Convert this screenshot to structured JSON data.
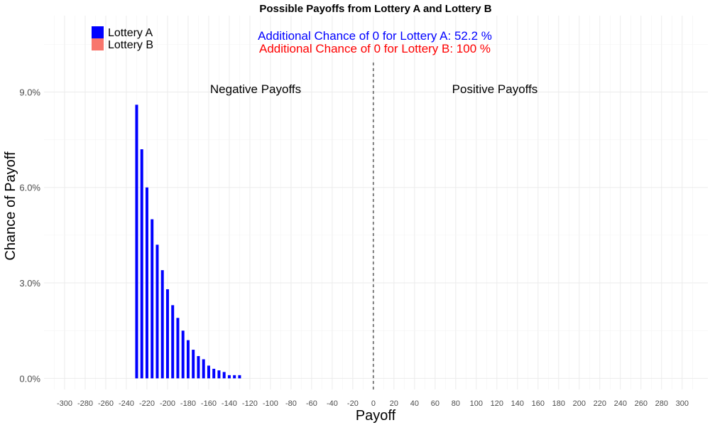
{
  "chart_data": {
    "type": "bar",
    "title": "Possible Payoffs from Lottery A and Lottery B",
    "xlabel": "Payoff",
    "ylabel": "Chance of Payoff",
    "xlim": [
      -320,
      325
    ],
    "ylim": [
      -0.35,
      11.4
    ],
    "x_ticks": [
      -300,
      -280,
      -260,
      -240,
      -220,
      -200,
      -180,
      -160,
      -140,
      -120,
      -100,
      -80,
      -60,
      -40,
      -20,
      0,
      20,
      40,
      60,
      80,
      100,
      120,
      140,
      160,
      180,
      200,
      220,
      240,
      260,
      280,
      300
    ],
    "y_ticks": [
      0,
      3,
      6,
      9
    ],
    "y_tick_labels": [
      "0.0%",
      "3.0%",
      "6.0%",
      "9.0%"
    ],
    "grid": true,
    "legend_position": "top-left",
    "legend": [
      {
        "name": "Lottery A",
        "color": "#0000ff"
      },
      {
        "name": "Lottery B",
        "color": "#f8766d"
      }
    ],
    "series": [
      {
        "name": "Lottery A",
        "color": "#0000ff",
        "x": [
          -230,
          -225,
          -220,
          -215,
          -210,
          -205,
          -200,
          -195,
          -190,
          -185,
          -180,
          -175,
          -170,
          -165,
          -160,
          -155,
          -150,
          -145,
          -140,
          -135,
          -130
        ],
        "values": [
          8.6,
          7.2,
          6.0,
          5.0,
          4.2,
          3.4,
          2.8,
          2.3,
          1.9,
          1.5,
          1.2,
          0.9,
          0.7,
          0.6,
          0.4,
          0.3,
          0.25,
          0.2,
          0.1,
          0.1,
          0.1
        ]
      },
      {
        "name": "Lottery B",
        "color": "#f8766d",
        "x": [],
        "values": []
      }
    ],
    "annotations": {
      "chance_a": "Additional Chance of 0 for Lottery A:  52.2 %",
      "chance_b": "Additional Chance of 0 for Lottery B:  100 %",
      "negative": "Negative Payoffs",
      "positive": "Positive Payoffs"
    },
    "annotation_colors": {
      "chance_a": "#0000ff",
      "chance_b": "#ff0000"
    },
    "reference_line_x": 0
  }
}
